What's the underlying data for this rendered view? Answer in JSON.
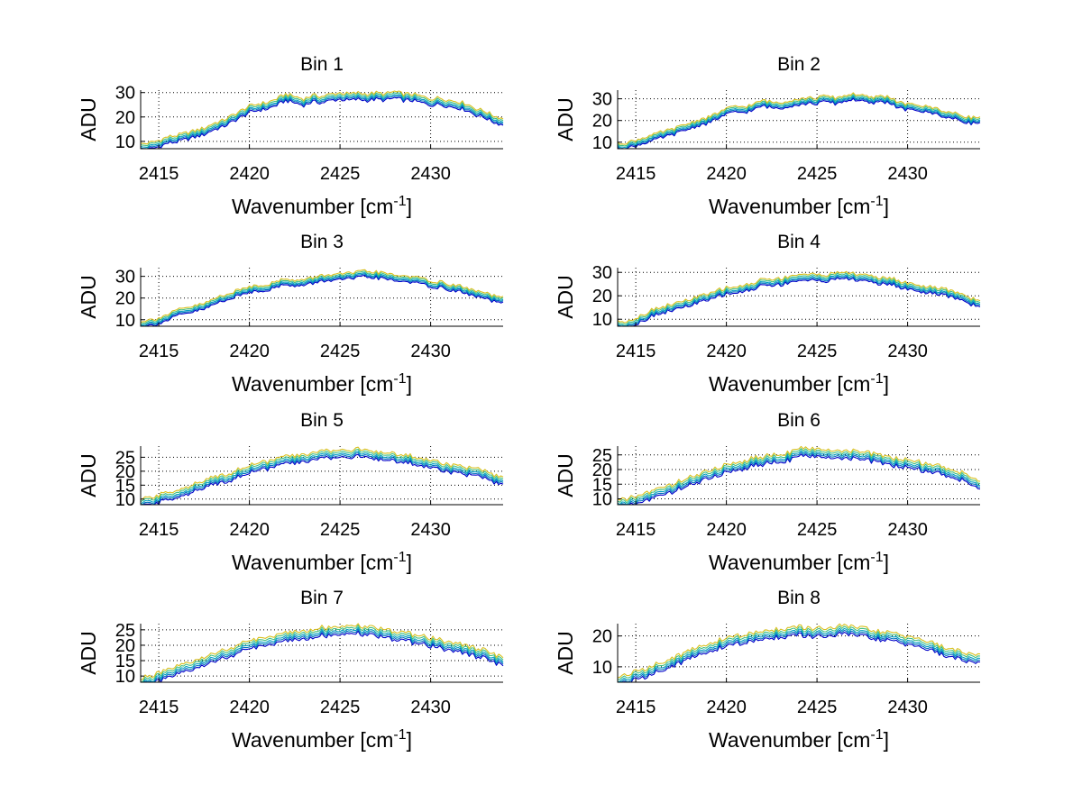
{
  "chart_data": {
    "type": "line",
    "layout": "4x2 grid of subplots",
    "x": [
      2414.0,
      2414.5,
      2415.0,
      2415.5,
      2416.0,
      2416.5,
      2417.0,
      2417.5,
      2418.0,
      2418.5,
      2419.0,
      2419.5,
      2420.0,
      2420.5,
      2421.0,
      2421.5,
      2422.0,
      2422.5,
      2423.0,
      2423.5,
      2424.0,
      2424.5,
      2425.0,
      2425.5,
      2426.0,
      2426.5,
      2427.0,
      2427.5,
      2428.0,
      2428.5,
      2429.0,
      2429.5,
      2430.0,
      2430.5,
      2431.0,
      2431.5,
      2432.0,
      2432.5,
      2433.0,
      2433.5,
      2434.0
    ],
    "series_colors": [
      "#0000c8",
      "#0072bd",
      "#00a0c0",
      "#40c080",
      "#d8c020"
    ],
    "series_offsets": [
      -1.2,
      -0.6,
      0.0,
      0.7,
      1.4
    ],
    "panels": [
      {
        "title": "Bin 1",
        "xlabel": "Wavenumber [cm",
        "xlabel_sup": "-1",
        "xlabel_close": "]",
        "ylabel": "ADU",
        "xlim": [
          2414,
          2434
        ],
        "ylim": [
          7,
          31
        ],
        "xticks": [
          2415,
          2420,
          2425,
          2430
        ],
        "yticks": [
          10,
          20,
          30
        ],
        "values": [
          7.5,
          8,
          9,
          10.5,
          11,
          12,
          13,
          14,
          16,
          17,
          19,
          21,
          23,
          24,
          24.5,
          26,
          28,
          27,
          26,
          27.5,
          27,
          28,
          28.5,
          28,
          28.5,
          28,
          28.5,
          28,
          29,
          28,
          28,
          27,
          26,
          26.5,
          25.5,
          25,
          24,
          22,
          21,
          19,
          18
        ]
      },
      {
        "title": "Bin 2",
        "xlabel": "Wavenumber [cm",
        "xlabel_sup": "-1",
        "xlabel_close": "]",
        "ylabel": "ADU",
        "xlim": [
          2414,
          2434
        ],
        "ylim": [
          7,
          34
        ],
        "xticks": [
          2415,
          2420,
          2425,
          2430
        ],
        "yticks": [
          10,
          20,
          30
        ],
        "values": [
          8,
          8.5,
          9.5,
          11,
          12,
          13.5,
          14.5,
          16,
          17.5,
          19,
          20,
          22,
          24,
          25,
          25,
          26,
          28,
          27,
          27,
          28,
          28.5,
          29,
          29,
          30,
          29,
          30,
          31,
          30,
          29,
          30,
          29.5,
          27,
          26,
          26,
          25,
          24.5,
          23,
          22,
          21,
          20,
          20
        ]
      },
      {
        "title": "Bin 3",
        "xlabel": "Wavenumber [cm",
        "xlabel_sup": "-1",
        "xlabel_close": "]",
        "ylabel": "ADU",
        "xlim": [
          2414,
          2434
        ],
        "ylim": [
          7,
          34
        ],
        "xticks": [
          2415,
          2420,
          2425,
          2430
        ],
        "yticks": [
          10,
          20,
          30
        ],
        "values": [
          8,
          8.5,
          9.5,
          11,
          13,
          14,
          15,
          16,
          18,
          20,
          21,
          22.5,
          24,
          24.5,
          25,
          26,
          28,
          26.5,
          27,
          28,
          29,
          29.5,
          29.5,
          30,
          30.5,
          31,
          30.5,
          30,
          29,
          29,
          28.5,
          27.5,
          26.5,
          26,
          25,
          24.5,
          23,
          22,
          21,
          19.5,
          19
        ]
      },
      {
        "title": "Bin 4",
        "xlabel": "Wavenumber [cm",
        "xlabel_sup": "-1",
        "xlabel_close": "]",
        "ylabel": "ADU",
        "xlim": [
          2414,
          2434
        ],
        "ylim": [
          7,
          32
        ],
        "xticks": [
          2415,
          2420,
          2425,
          2430
        ],
        "yticks": [
          10,
          20,
          30
        ],
        "values": [
          7.5,
          8,
          9,
          11,
          13,
          14,
          15,
          16,
          17,
          18.5,
          19,
          21,
          22,
          22.5,
          23,
          24,
          26,
          25.5,
          26,
          27,
          28,
          27.5,
          28,
          27.5,
          28,
          29,
          28,
          27.5,
          27.5,
          26,
          26.5,
          25,
          24,
          23.5,
          22.5,
          22,
          21.5,
          20.5,
          19.5,
          17.5,
          17
        ]
      },
      {
        "title": "Bin 5",
        "xlabel": "Wavenumber [cm",
        "xlabel_sup": "-1",
        "xlabel_close": "]",
        "ylabel": "ADU",
        "xlim": [
          2414,
          2434
        ],
        "ylim": [
          8,
          29
        ],
        "xticks": [
          2415,
          2420,
          2425,
          2430
        ],
        "yticks": [
          10,
          15,
          20,
          25
        ],
        "values": [
          8.5,
          9,
          10,
          11,
          12,
          13,
          14,
          15,
          16.5,
          17.5,
          18,
          19.5,
          21,
          21.5,
          22,
          23,
          24,
          24,
          24.5,
          25,
          26.5,
          26,
          26.5,
          26,
          26.5,
          26,
          25.5,
          25,
          25,
          24.5,
          24,
          23,
          22.5,
          22,
          21,
          20.5,
          20,
          19.5,
          18.5,
          17,
          16
        ]
      },
      {
        "title": "Bin 6",
        "xlabel": "Wavenumber [cm",
        "xlabel_sup": "-1",
        "xlabel_close": "]",
        "ylabel": "ADU",
        "xlim": [
          2414,
          2434
        ],
        "ylim": [
          8,
          28
        ],
        "xticks": [
          2415,
          2420,
          2425,
          2430
        ],
        "yticks": [
          10,
          15,
          20,
          25
        ],
        "values": [
          8,
          8.5,
          9.5,
          10.5,
          11.5,
          12.5,
          13.5,
          15,
          16,
          17,
          18,
          19,
          20.5,
          21,
          21.5,
          22.5,
          23,
          23.5,
          24,
          24.5,
          26,
          25.5,
          25.5,
          25,
          25.5,
          25,
          25,
          24.5,
          24,
          23.5,
          23,
          22,
          22,
          21.5,
          20.5,
          20,
          19.5,
          18.5,
          17.5,
          16,
          15
        ]
      },
      {
        "title": "Bin 7",
        "xlabel": "Wavenumber [cm",
        "xlabel_sup": "-1",
        "xlabel_close": "]",
        "ylabel": "ADU",
        "xlim": [
          2414,
          2434
        ],
        "ylim": [
          8,
          27
        ],
        "xticks": [
          2415,
          2420,
          2425,
          2430
        ],
        "yticks": [
          10,
          15,
          20,
          25
        ],
        "values": [
          8,
          8.5,
          9.5,
          10.5,
          11.5,
          12.5,
          13.5,
          14.5,
          16,
          17,
          17.5,
          19,
          20,
          20.5,
          21,
          22,
          22.5,
          23.5,
          23,
          24,
          24.5,
          24,
          24.5,
          24.5,
          25,
          24.5,
          24,
          24,
          23,
          23,
          22,
          21.5,
          21,
          20.5,
          19.5,
          19,
          18.5,
          17.5,
          17,
          15.5,
          14.5
        ]
      },
      {
        "title": "Bin 8",
        "xlabel": "Wavenumber [cm",
        "xlabel_sup": "-1",
        "xlabel_close": "]",
        "ylabel": "ADU",
        "xlim": [
          2414,
          2434
        ],
        "ylim": [
          5,
          24
        ],
        "xticks": [
          2415,
          2420,
          2425,
          2430
        ],
        "yticks": [
          10,
          20
        ],
        "values": [
          5.5,
          6,
          7,
          8,
          9,
          10.5,
          11.5,
          12.5,
          14,
          15,
          16,
          17,
          18,
          18.5,
          19,
          19.5,
          20,
          20.5,
          21,
          21,
          21.5,
          21,
          21,
          21,
          21.5,
          22,
          21.5,
          21,
          20.5,
          20,
          19.5,
          19,
          18.5,
          18,
          17,
          16,
          15,
          14,
          13.5,
          13,
          13
        ]
      }
    ]
  }
}
